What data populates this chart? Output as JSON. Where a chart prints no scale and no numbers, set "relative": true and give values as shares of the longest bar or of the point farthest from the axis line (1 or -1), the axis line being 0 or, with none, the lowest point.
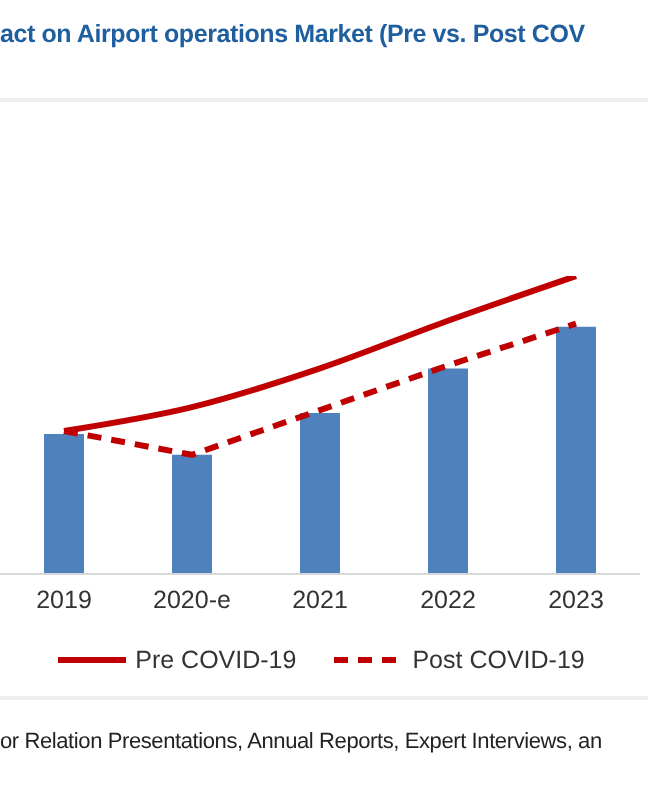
{
  "chart_data": {
    "type": "bar",
    "title": "act on Airport operations Market (Pre vs. Post COV",
    "categories": [
      "2019",
      "2020-e",
      "2021",
      "2022",
      "2023"
    ],
    "relative": true,
    "legend": "bottom",
    "grid": false,
    "series": [
      {
        "color": "#4f81bd",
        "values": [
          0.47,
          0.4,
          0.54,
          0.69,
          0.83
        ]
      },
      {
        "type": "line",
        "name": "Pre COVID-19",
        "color": "#c00000",
        "line_style": "solid",
        "values": [
          0.48,
          0.56,
          0.69,
          0.85,
          1
        ]
      },
      {
        "type": "line",
        "name": "Post COVID-19",
        "color": "#c00000",
        "line_style": "dashed",
        "values": [
          0.48,
          0.4,
          0.55,
          0.7,
          0.84
        ]
      }
    ],
    "annotations": [
      "or Relation Presentations, Annual Reports, Expert Interviews, an"
    ]
  }
}
